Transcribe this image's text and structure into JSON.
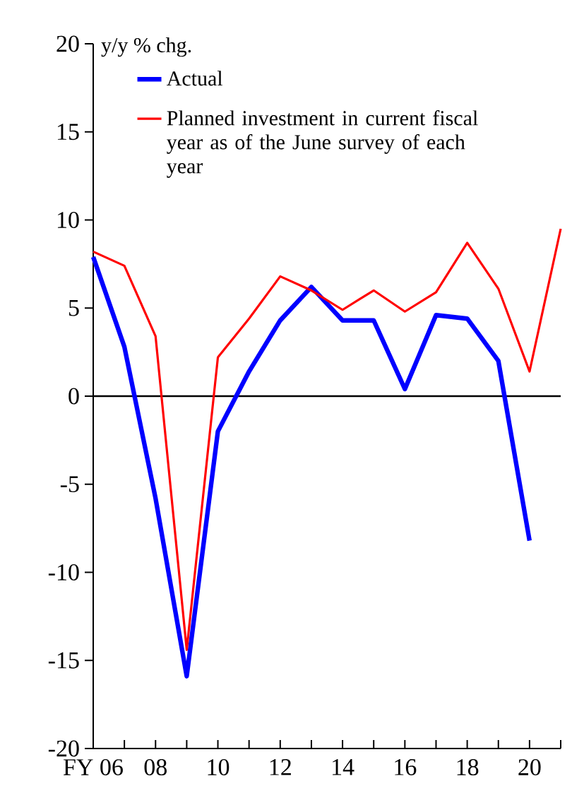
{
  "chart_data": {
    "type": "line",
    "ylabel": "y/y % chg.",
    "x": [
      2006,
      2007,
      2008,
      2009,
      2010,
      2011,
      2012,
      2013,
      2014,
      2015,
      2016,
      2017,
      2018,
      2019,
      2020,
      2021
    ],
    "series": [
      {
        "name": "Actual",
        "color": "#0000ff",
        "values": [
          7.9,
          2.8,
          -5.8,
          -15.9,
          -2.0,
          1.4,
          4.3,
          6.2,
          4.3,
          4.3,
          0.4,
          4.6,
          4.4,
          2.0,
          -8.2,
          null
        ]
      },
      {
        "name": "Planned investment in current fiscal year as of the June survey of each year",
        "color": "#ff0000",
        "values": [
          8.2,
          7.4,
          3.4,
          -14.4,
          2.2,
          4.4,
          6.8,
          6.0,
          4.9,
          6.0,
          4.8,
          5.9,
          8.7,
          6.1,
          1.4,
          9.5
        ]
      }
    ],
    "xlim": [
      2006,
      2021
    ],
    "xticks": [
      {
        "value": 2006,
        "label": "FY 06"
      },
      {
        "value": 2007,
        "label": null
      },
      {
        "value": 2008,
        "label": "08"
      },
      {
        "value": 2009,
        "label": null
      },
      {
        "value": 2010,
        "label": "10"
      },
      {
        "value": 2011,
        "label": null
      },
      {
        "value": 2012,
        "label": "12"
      },
      {
        "value": 2013,
        "label": null
      },
      {
        "value": 2014,
        "label": "14"
      },
      {
        "value": 2015,
        "label": null
      },
      {
        "value": 2016,
        "label": "16"
      },
      {
        "value": 2017,
        "label": null
      },
      {
        "value": 2018,
        "label": "18"
      },
      {
        "value": 2019,
        "label": null
      },
      {
        "value": 2020,
        "label": "20"
      },
      {
        "value": 2021,
        "label": null
      }
    ],
    "ylim": [
      -20,
      20
    ],
    "yticks": [
      -20,
      -15,
      -10,
      -5,
      0,
      5,
      10,
      15,
      20
    ],
    "ref_lines": [
      {
        "axis": "y",
        "value": 0,
        "color": "#000000"
      }
    ],
    "legend": "top left",
    "grid": false,
    "marker": "none",
    "line_style": "solid"
  }
}
